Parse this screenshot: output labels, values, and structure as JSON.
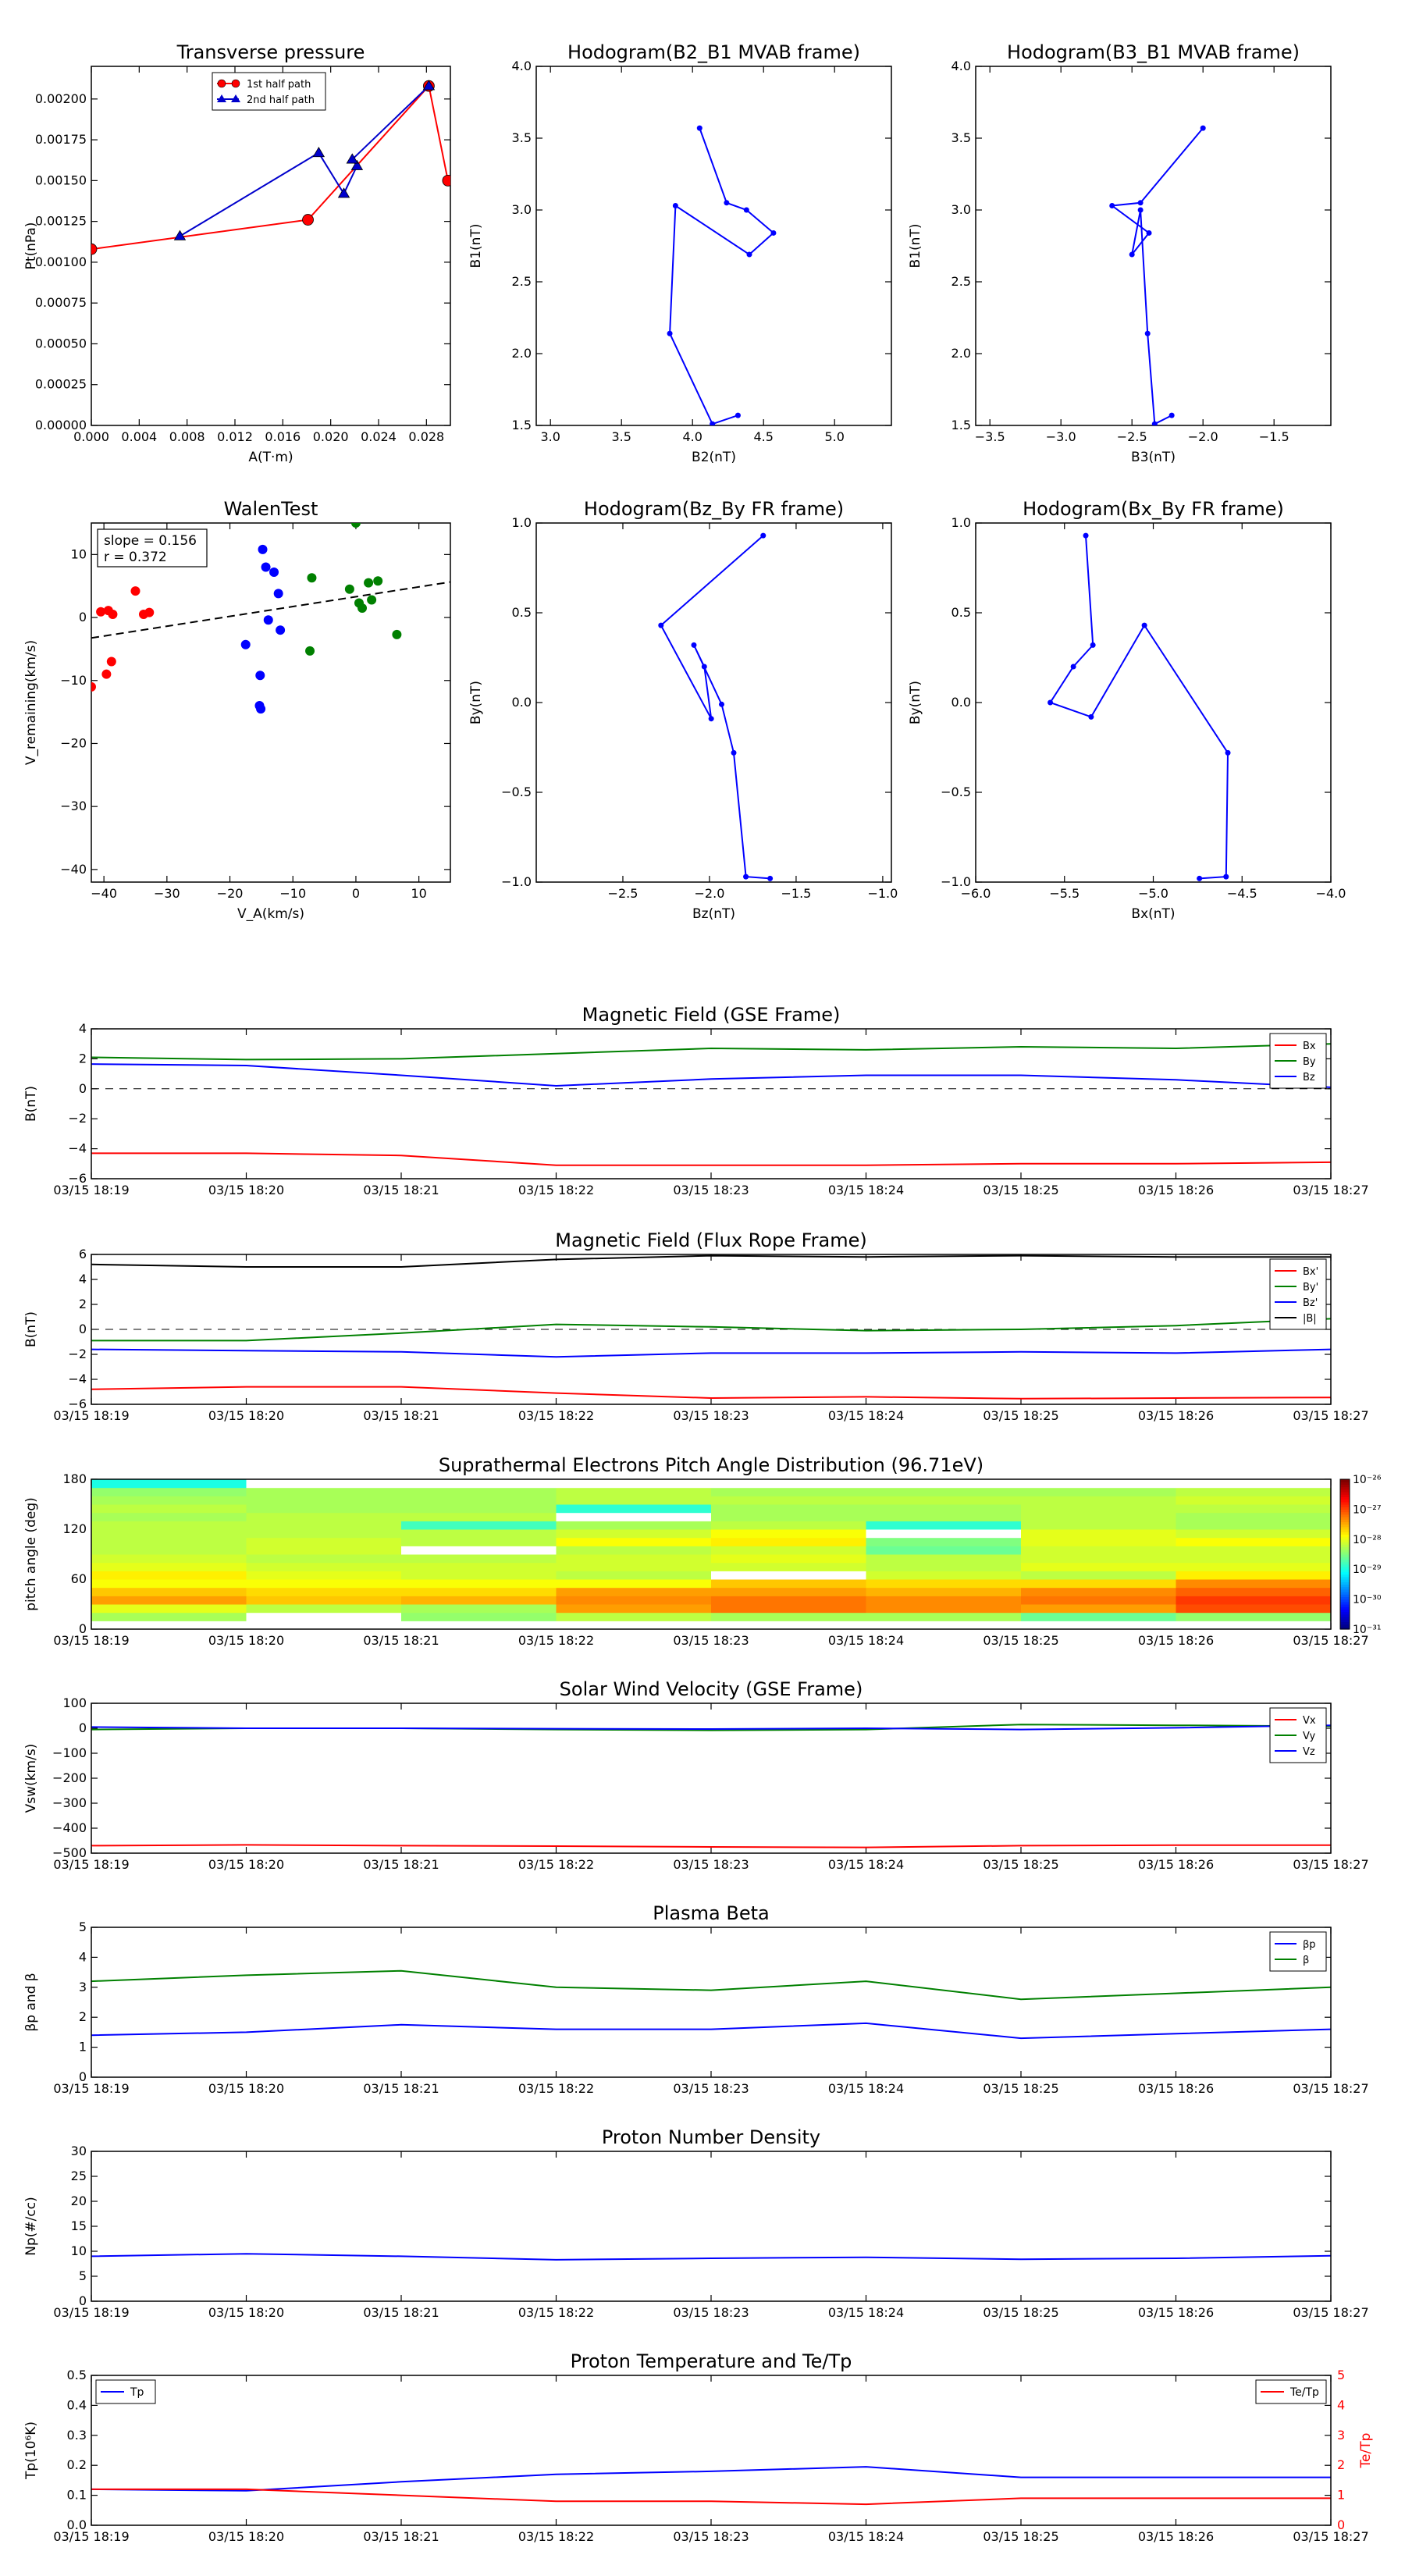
{
  "chart_data": [
    {
      "id": "transverse-pressure",
      "type": "line",
      "title": "Transverse pressure",
      "xlabel": "A(T·m)",
      "ylabel": "Pt(nPa)",
      "xlim": [
        0,
        0.03
      ],
      "ylim": [
        0,
        0.0022
      ],
      "xticks": [
        0,
        0.004,
        0.008,
        0.012,
        0.016,
        0.02,
        0.024,
        0.028
      ],
      "xtick_labels": [
        "0.000",
        "0.004",
        "0.008",
        "0.012",
        "0.016",
        "0.020",
        "0.024",
        "0.028"
      ],
      "yticks": [
        0,
        0.00025,
        0.0005,
        0.00075,
        0.001,
        0.00125,
        0.0015,
        0.00175,
        0.002
      ],
      "ytick_labels": [
        "0.00000",
        "0.00025",
        "0.00050",
        "0.00075",
        "0.00100",
        "0.00125",
        "0.00150",
        "0.00175",
        "0.00200"
      ],
      "legend": "top-center",
      "series": [
        {
          "name": "1st half path",
          "color": "#ff0000",
          "marker": "circle",
          "x": [
            0.0,
            0.0181,
            0.0282,
            0.0298
          ],
          "y": [
            0.00108,
            0.00126,
            0.00208,
            0.0015
          ]
        },
        {
          "name": "2nd half path",
          "color": "#0000cc",
          "marker": "triangle",
          "x": [
            0.0074,
            0.019,
            0.0211,
            0.0222,
            0.0218,
            0.0282
          ],
          "y": [
            0.00116,
            0.00167,
            0.00142,
            0.00159,
            0.00163,
            0.00208
          ]
        }
      ]
    },
    {
      "id": "hodogram-b2-b1",
      "type": "line",
      "title": "Hodogram(B2_B1 MVAB frame)",
      "xlabel": "B2(nT)",
      "ylabel": "B1(nT)",
      "xlim": [
        2.9,
        5.4
      ],
      "ylim": [
        1.5,
        4.0
      ],
      "xticks": [
        3.0,
        3.5,
        4.0,
        4.5,
        5.0
      ],
      "xtick_labels": [
        "3.0",
        "3.5",
        "4.0",
        "4.5",
        "5.0"
      ],
      "yticks": [
        1.5,
        2.0,
        2.5,
        3.0,
        3.5,
        4.0
      ],
      "ytick_labels": [
        "1.5",
        "2.0",
        "2.5",
        "3.0",
        "3.5",
        "4.0"
      ],
      "series": [
        {
          "color": "#0000ff",
          "marker": "dot",
          "x": [
            4.05,
            4.24,
            4.38,
            4.57,
            4.4,
            3.88,
            3.84,
            4.14,
            4.32
          ],
          "y": [
            3.57,
            3.05,
            3.0,
            2.84,
            2.69,
            3.03,
            2.14,
            1.51,
            1.57
          ]
        }
      ]
    },
    {
      "id": "hodogram-b3-b1",
      "type": "line",
      "title": "Hodogram(B3_B1 MVAB frame)",
      "xlabel": "B3(nT)",
      "ylabel": "B1(nT)",
      "xlim": [
        -3.6,
        -1.1
      ],
      "ylim": [
        1.5,
        4.0
      ],
      "xticks": [
        -3.5,
        -3.0,
        -2.5,
        -2.0,
        -1.5
      ],
      "xtick_labels": [
        "−3.5",
        "−3.0",
        "−2.5",
        "−2.0",
        "−1.5"
      ],
      "yticks": [
        1.5,
        2.0,
        2.5,
        3.0,
        3.5,
        4.0
      ],
      "ytick_labels": [
        "1.5",
        "2.0",
        "2.5",
        "3.0",
        "3.5",
        "4.0"
      ],
      "series": [
        {
          "color": "#0000ff",
          "marker": "dot",
          "x": [
            -2.0,
            -2.44,
            -2.64,
            -2.38,
            -2.5,
            -2.44,
            -2.39,
            -2.34,
            -2.22
          ],
          "y": [
            3.57,
            3.05,
            3.03,
            2.84,
            2.69,
            3.0,
            2.14,
            1.51,
            1.57
          ]
        }
      ]
    },
    {
      "id": "walen-test",
      "type": "scatter",
      "title": "WalenTest",
      "xlabel": "V_A(km/s)",
      "ylabel": "V_remaining(km/s)",
      "xlim": [
        -42,
        15
      ],
      "ylim": [
        -42,
        15
      ],
      "xticks": [
        -40,
        -30,
        -20,
        -10,
        0,
        10
      ],
      "xtick_labels": [
        "−40",
        "−30",
        "−20",
        "−10",
        "0",
        "10"
      ],
      "yticks": [
        -40,
        -30,
        -20,
        -10,
        0,
        10
      ],
      "ytick_labels": [
        "−40",
        "−30",
        "−20",
        "−10",
        "0",
        "10"
      ],
      "annotation": [
        "slope = 0.156",
        "r = 0.372"
      ],
      "fit": {
        "slope": 0.156,
        "intercept": 3.3
      },
      "series": [
        {
          "color": "#ff0000",
          "x": [
            -42,
            -40.5,
            -39.3,
            -38.6,
            -39.6,
            -38.8,
            -35,
            -33.7,
            -32.8
          ],
          "y": [
            -11,
            0.9,
            1.1,
            0.5,
            -9,
            -7,
            4.2,
            0.5,
            0.8
          ]
        },
        {
          "color": "#0000ff",
          "x": [
            -14.8,
            -14.3,
            -13.9,
            -13.0,
            -12.3,
            -12.0,
            -15.1,
            -15.2,
            -17.5,
            -15.3
          ],
          "y": [
            10.8,
            8.0,
            -0.4,
            7.2,
            3.8,
            -2.0,
            -14.5,
            -9.2,
            -4.3,
            -14.0
          ]
        },
        {
          "color": "#008000",
          "x": [
            0,
            -7.0,
            -1.0,
            0.5,
            2.5,
            3.5,
            -7.3,
            2.0,
            6.5,
            1.0
          ],
          "y": [
            15,
            6.3,
            4.5,
            2.3,
            2.8,
            5.8,
            -5.3,
            5.5,
            -2.7,
            1.5
          ]
        }
      ]
    },
    {
      "id": "hodogram-bz-by",
      "type": "line",
      "title": "Hodogram(Bz_By FR frame)",
      "xlabel": "Bz(nT)",
      "ylabel": "By(nT)",
      "xlim": [
        -3.0,
        -0.95
      ],
      "ylim": [
        -1.0,
        1.0
      ],
      "xticks": [
        -2.5,
        -2.0,
        -1.5,
        -1.0
      ],
      "xtick_labels": [
        "−2.5",
        "−2.0",
        "−1.5",
        "−1.0"
      ],
      "yticks": [
        -1.0,
        -0.5,
        0.0,
        0.5,
        1.0
      ],
      "ytick_labels": [
        "−1.0",
        "−0.5",
        "0.0",
        "0.5",
        "1.0"
      ],
      "series": [
        {
          "color": "#0000ff",
          "marker": "dot",
          "x": [
            -1.69,
            -2.28,
            -1.99,
            -2.03,
            -2.09,
            -1.93,
            -1.86,
            -1.79,
            -1.65
          ],
          "y": [
            0.93,
            0.43,
            -0.09,
            0.2,
            0.32,
            -0.01,
            -0.28,
            -0.97,
            -0.98
          ]
        }
      ]
    },
    {
      "id": "hodogram-bx-by",
      "type": "line",
      "title": "Hodogram(Bx_By FR frame)",
      "xlabel": "Bx(nT)",
      "ylabel": "By(nT)",
      "xlim": [
        -6.0,
        -4.0
      ],
      "ylim": [
        -1.0,
        1.0
      ],
      "xticks": [
        -6.0,
        -5.5,
        -5.0,
        -4.5,
        -4.0
      ],
      "xtick_labels": [
        "−6.0",
        "−5.5",
        "−5.0",
        "−4.5",
        "−4.0"
      ],
      "yticks": [
        -1.0,
        -0.5,
        0.0,
        0.5,
        1.0
      ],
      "ytick_labels": [
        "−1.0",
        "−0.5",
        "0.0",
        "0.5",
        "1.0"
      ],
      "series": [
        {
          "color": "#0000ff",
          "marker": "dot",
          "x": [
            -5.38,
            -5.34,
            -5.45,
            -5.58,
            -5.35,
            -5.05,
            -4.58,
            -4.59,
            -4.74
          ],
          "y": [
            0.93,
            0.32,
            0.2,
            0.0,
            -0.08,
            0.43,
            -0.28,
            -0.97,
            -0.98
          ]
        }
      ]
    },
    {
      "id": "mag-gse",
      "type": "line",
      "title": "Magnetic Field (GSE Frame)",
      "ylabel": "B(nT)",
      "ylim": [
        -6,
        4
      ],
      "yticks": [
        -6,
        -4,
        -2,
        0,
        2,
        4
      ],
      "ytick_labels": [
        "−6",
        "−4",
        "−2",
        "0",
        "2",
        "4"
      ],
      "zero_line": true,
      "legend": "top-right",
      "series": [
        {
          "name": "Bx",
          "color": "#ff0000",
          "values": [
            -4.3,
            -4.3,
            -4.45,
            -5.1,
            -5.1,
            -5.1,
            -5.0,
            -5.0,
            -4.9
          ]
        },
        {
          "name": "By",
          "color": "#008000",
          "values": [
            2.1,
            1.95,
            2.0,
            2.35,
            2.7,
            2.6,
            2.8,
            2.7,
            3.0
          ]
        },
        {
          "name": "Bz",
          "color": "#0000ff",
          "values": [
            1.65,
            1.55,
            0.9,
            0.2,
            0.65,
            0.9,
            0.9,
            0.6,
            0.1
          ]
        }
      ]
    },
    {
      "id": "mag-fr",
      "type": "line",
      "title": "Magnetic Field (Flux Rope Frame)",
      "ylabel": "B(nT)",
      "ylim": [
        -6,
        6
      ],
      "yticks": [
        -6,
        -4,
        -2,
        0,
        2,
        4,
        6
      ],
      "ytick_labels": [
        "−6",
        "−4",
        "−2",
        "0",
        "2",
        "4",
        "6"
      ],
      "zero_line": true,
      "legend": "top-right",
      "series": [
        {
          "name": "Bx'",
          "color": "#ff0000",
          "values": [
            -4.8,
            -4.6,
            -4.6,
            -5.1,
            -5.5,
            -5.4,
            -5.55,
            -5.5,
            -5.45
          ]
        },
        {
          "name": "By'",
          "color": "#008000",
          "values": [
            -0.9,
            -0.9,
            -0.3,
            0.4,
            0.2,
            -0.1,
            0.0,
            0.3,
            0.85
          ]
        },
        {
          "name": "Bz'",
          "color": "#0000ff",
          "values": [
            -1.6,
            -1.7,
            -1.8,
            -2.2,
            -1.9,
            -1.9,
            -1.8,
            -1.9,
            -1.6
          ]
        },
        {
          "name": "|B|",
          "color": "#000000",
          "values": [
            5.2,
            5.0,
            5.0,
            5.6,
            5.9,
            5.8,
            5.9,
            5.8,
            5.8
          ]
        }
      ]
    },
    {
      "id": "pad",
      "type": "heatmap",
      "title": "Suprathermal Electrons Pitch Angle Distribution (96.71eV)",
      "ylabel": "pitch angle (deg)",
      "ylim": [
        0,
        180
      ],
      "yticks": [
        0,
        60,
        120,
        180
      ],
      "ytick_labels": [
        "0",
        "60",
        "120",
        "180"
      ],
      "colorbar_ticks": [
        "10⁻³¹",
        "10⁻³⁰",
        "10⁻²⁹",
        "10⁻²⁸",
        "10⁻²⁷",
        "10⁻²⁶"
      ],
      "bins_deg": [
        0,
        10,
        20,
        30,
        40,
        50,
        60,
        70,
        80,
        90,
        100,
        110,
        120,
        130,
        140,
        150,
        160,
        170
      ],
      "values_log": [
        [
          -31.5,
          -28.3,
          -28.0,
          -27.4,
          -27.6,
          -27.9,
          -27.8,
          -28.0,
          -28.1,
          -28.2,
          -28.2,
          -28.2,
          -28.2,
          -28.3,
          -28.2,
          -28.3,
          -28.4,
          -29.0
        ],
        [
          -31.5,
          -31.5,
          -28.2,
          -27.6,
          -27.7,
          -27.9,
          -28.0,
          -28.1,
          -28.2,
          -28.1,
          -28.1,
          -28.2,
          -28.2,
          -28.2,
          -28.3,
          -28.3,
          -28.3,
          -31.5
        ],
        [
          -31.5,
          -28.4,
          -28.3,
          -27.5,
          -27.7,
          -27.9,
          -28.1,
          -28.1,
          -28.2,
          -31.5,
          -28.2,
          -28.2,
          -28.8,
          -28.2,
          -28.3,
          -28.3,
          -28.3,
          -31.5
        ],
        [
          -31.5,
          -28.2,
          -27.4,
          -27.3,
          -27.4,
          -27.9,
          -28.2,
          -28.1,
          -28.1,
          -28.2,
          -27.9,
          -28.1,
          -28.3,
          -31.5,
          -28.9,
          -28.2,
          -28.2,
          -31.5
        ],
        [
          -31.5,
          -28.3,
          -27.2,
          -27.2,
          -27.4,
          -27.6,
          -31.5,
          -28.1,
          -28.0,
          -28.1,
          -27.8,
          -27.9,
          -28.2,
          -28.3,
          -28.3,
          -28.2,
          -28.3,
          -31.5
        ],
        [
          -31.5,
          -28.3,
          -27.3,
          -27.3,
          -27.5,
          -27.7,
          -28.1,
          -28.2,
          -28.2,
          -28.6,
          -28.5,
          -31.5,
          -28.9,
          -28.3,
          -28.3,
          -28.2,
          -28.3,
          -31.5
        ],
        [
          -31.5,
          -28.6,
          -27.4,
          -27.2,
          -27.3,
          -27.7,
          -28.2,
          -28.0,
          -28.1,
          -28.1,
          -28.0,
          -28.0,
          -28.2,
          -28.2,
          -28.2,
          -28.2,
          -28.3,
          -31.5
        ],
        [
          -31.5,
          -28.4,
          -27.0,
          -26.9,
          -27.1,
          -27.3,
          -27.8,
          -28.0,
          -28.1,
          -28.1,
          -27.9,
          -28.1,
          -28.3,
          -28.3,
          -28.2,
          -28.1,
          -28.2,
          -31.5
        ]
      ]
    },
    {
      "id": "vsw",
      "type": "line",
      "title": "Solar Wind Velocity (GSE Frame)",
      "ylabel": "Vsw(km/s)",
      "ylim": [
        -500,
        100
      ],
      "yticks": [
        -500,
        -400,
        -300,
        -200,
        -100,
        0,
        100
      ],
      "ytick_labels": [
        "−500",
        "−400",
        "−300",
        "−200",
        "−100",
        "0",
        "100"
      ],
      "legend": "top-right",
      "series": [
        {
          "name": "Vx",
          "color": "#ff0000",
          "values": [
            -470,
            -467,
            -470,
            -472,
            -475,
            -477,
            -470,
            -468,
            -468
          ]
        },
        {
          "name": "Vy",
          "color": "#008000",
          "values": [
            -5,
            0,
            0,
            -5,
            -8,
            -5,
            15,
            12,
            8
          ]
        },
        {
          "name": "Vz",
          "color": "#0000ff",
          "values": [
            5,
            0,
            0,
            -2,
            -3,
            0,
            -5,
            2,
            12
          ]
        }
      ]
    },
    {
      "id": "beta",
      "type": "line",
      "title": "Plasma Beta",
      "ylabel": "βp and β",
      "ylim": [
        0,
        5
      ],
      "yticks": [
        0,
        1,
        2,
        3,
        4,
        5
      ],
      "ytick_labels": [
        "0",
        "1",
        "2",
        "3",
        "4",
        "5"
      ],
      "legend": "top-right",
      "series": [
        {
          "name": "βp",
          "color": "#0000ff",
          "values": [
            1.4,
            1.5,
            1.75,
            1.6,
            1.6,
            1.8,
            1.3,
            1.45,
            1.6
          ]
        },
        {
          "name": "β",
          "color": "#008000",
          "values": [
            3.2,
            3.4,
            3.55,
            3.0,
            2.9,
            3.2,
            2.6,
            2.8,
            3.0
          ]
        }
      ]
    },
    {
      "id": "np",
      "type": "line",
      "title": "Proton Number Density",
      "ylabel": "Np(#/cc)",
      "ylim": [
        0,
        30
      ],
      "yticks": [
        0,
        5,
        10,
        15,
        20,
        25,
        30
      ],
      "ytick_labels": [
        "0",
        "5",
        "10",
        "15",
        "20",
        "25",
        "30"
      ],
      "series": [
        {
          "color": "#0000ff",
          "values": [
            9.0,
            9.5,
            9.0,
            8.3,
            8.6,
            8.8,
            8.4,
            8.6,
            9.1
          ]
        }
      ]
    },
    {
      "id": "tp",
      "type": "line",
      "title": "Proton Temperature and Te/Tp",
      "ylabel": "Tp(10⁶K)",
      "ylim": [
        0,
        0.5
      ],
      "yticks": [
        0,
        0.1,
        0.2,
        0.3,
        0.4,
        0.5
      ],
      "ytick_labels": [
        "0.0",
        "0.1",
        "0.2",
        "0.3",
        "0.4",
        "0.5"
      ],
      "ylabel_right": "Te/Tp",
      "ylim_right": [
        0,
        5
      ],
      "yticks_right": [
        0,
        1,
        2,
        3,
        4,
        5
      ],
      "legend_left": "Tp",
      "legend_right": "Te/Tp",
      "series": [
        {
          "name": "Tp",
          "color": "#0000ff",
          "axis": "left",
          "values": [
            0.12,
            0.115,
            0.145,
            0.17,
            0.18,
            0.195,
            0.16,
            0.16,
            0.16
          ]
        },
        {
          "name": "Te/Tp",
          "color": "#ff0000",
          "axis": "right",
          "values": [
            1.2,
            1.2,
            1.0,
            0.8,
            0.8,
            0.7,
            0.9,
            0.9,
            0.9
          ]
        }
      ]
    }
  ],
  "time_axis": {
    "ticks": [
      "03/15 18:19",
      "03/15 18:20",
      "03/15 18:21",
      "03/15 18:22",
      "03/15 18:23",
      "03/15 18:24",
      "03/15 18:25",
      "03/15 18:26",
      "03/15 18:27"
    ]
  }
}
